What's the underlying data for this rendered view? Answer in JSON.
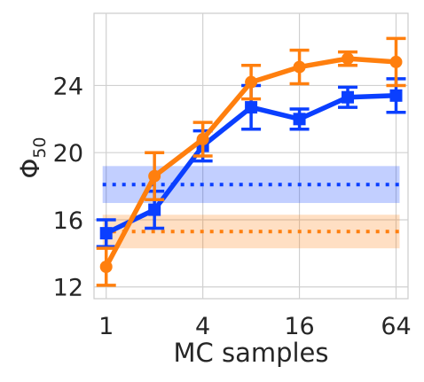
{
  "chart_data": {
    "type": "line",
    "title": "",
    "xlabel": "MC samples",
    "ylabel_base": "Φ",
    "ylabel_sub": "50",
    "x_scale": "log2",
    "x": [
      1,
      2,
      4,
      8,
      16,
      32,
      64
    ],
    "xticks": [
      1,
      4,
      16,
      64
    ],
    "xtick_labels": [
      "1",
      "4",
      "16",
      "64"
    ],
    "yticks": [
      12,
      16,
      20,
      24
    ],
    "ytick_labels": [
      "12",
      "16",
      "20",
      "24"
    ],
    "xlim": [
      0.84,
      76
    ],
    "ylim": [
      11.3,
      28.3
    ],
    "grid": true,
    "legend": "none",
    "series": [
      {
        "color": "#0a3fff",
        "marker": "square",
        "values": [
          15.2,
          16.6,
          20.4,
          22.7,
          22.0,
          23.3,
          23.4
        ],
        "err": [
          0.8,
          1.1,
          0.9,
          1.3,
          0.6,
          0.6,
          1.0
        ]
      },
      {
        "color": "#ff7f0e",
        "marker": "circle",
        "values": [
          13.2,
          18.6,
          20.8,
          24.2,
          25.1,
          25.6,
          25.4
        ],
        "err": [
          1.1,
          1.4,
          1.0,
          1.0,
          1.0,
          0.4,
          1.4
        ]
      }
    ],
    "baselines": [
      {
        "color": "#0a3fff",
        "value": 18.1,
        "band": [
          17.0,
          19.2
        ]
      },
      {
        "color": "#ff7f0e",
        "value": 15.3,
        "band": [
          14.3,
          16.3
        ]
      }
    ]
  }
}
